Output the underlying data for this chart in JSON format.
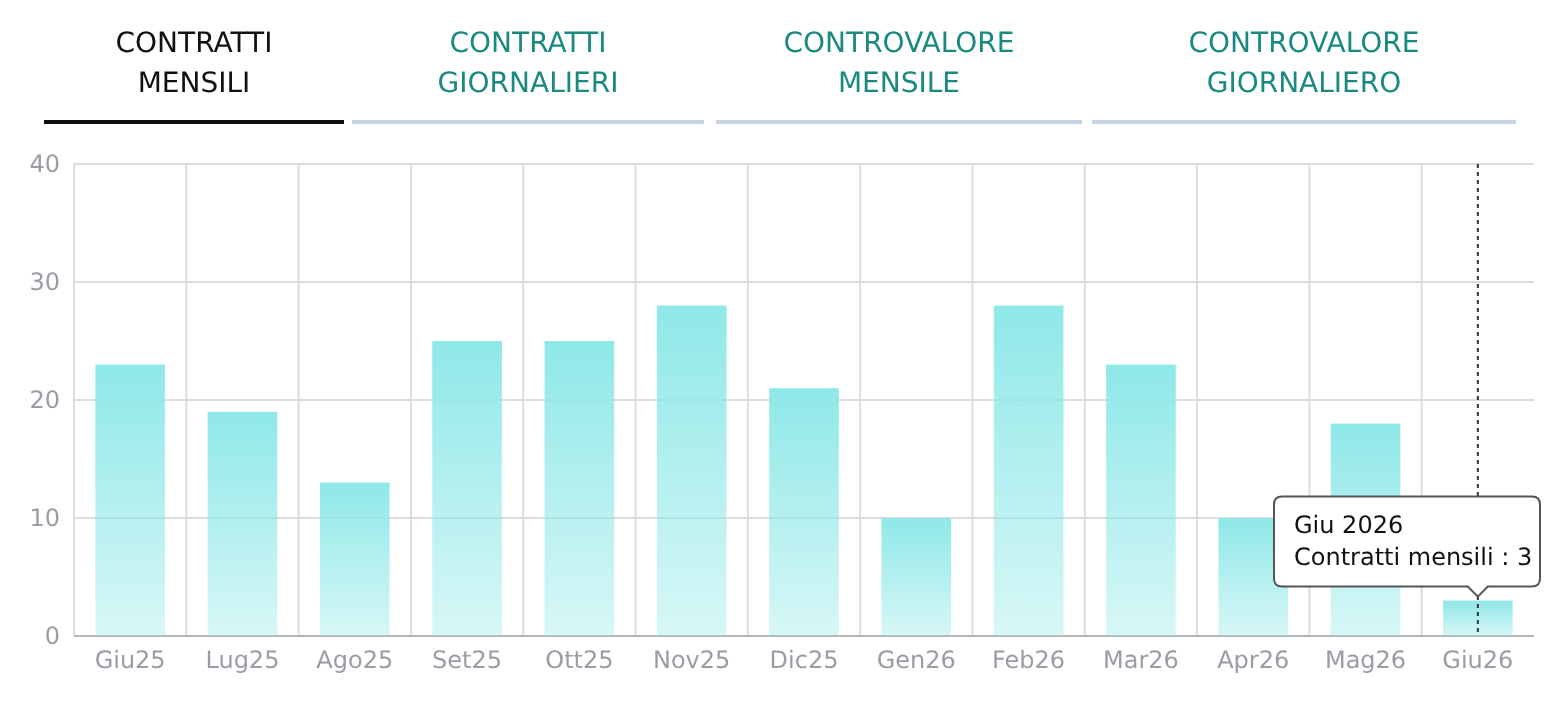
{
  "chart_data": {
    "type": "bar",
    "categories": [
      "Giu25",
      "Lug25",
      "Ago25",
      "Set25",
      "Ott25",
      "Nov25",
      "Dic25",
      "Gen26",
      "Feb26",
      "Mar26",
      "Apr26",
      "Mag26",
      "Giu26"
    ],
    "values": [
      23,
      19,
      13,
      25,
      25,
      28,
      21,
      10,
      28,
      23,
      10,
      18,
      3
    ],
    "color": "#8fe8e8",
    "ref_lines": [
      {
        "axis": "x",
        "value": "Giu26",
        "color": "#333333",
        "line_style": "dotted"
      }
    ],
    "ylim": [
      0,
      40
    ],
    "yticks": [
      0,
      10,
      20,
      30,
      40
    ],
    "grid": true,
    "annotations": [
      "CONTRATTI MENSILI",
      "CONTRATTI GIORNALIERI",
      "CONTROVALORE MENSILE",
      "CONTROVALORE GIORNALIERO",
      {
        "text": "Giu 2026\nContratti mensili : 3",
        "x": "Giu26",
        "y": 3
      }
    ]
  }
}
